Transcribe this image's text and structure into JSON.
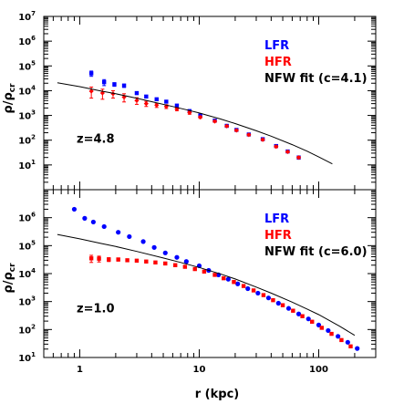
{
  "figure": {
    "xlabel": "r (kpc)",
    "ylabel": "ρ/ρ_cr"
  },
  "chart_data": [
    {
      "type": "scatter",
      "panel": "top",
      "annotation": "z=4.8",
      "xscale": "log",
      "yscale": "log",
      "xlim": [
        0.5,
        300
      ],
      "ylim": [
        1,
        10000000.0
      ],
      "xticks": [
        1,
        10,
        100
      ],
      "xtick_labels": [
        "1",
        "10",
        "100"
      ],
      "yticks": [
        10.0,
        100.0,
        1000.0,
        10000.0,
        100000.0,
        1000000.0,
        10000000.0
      ],
      "ytick_labels": [
        {
          "base": "10",
          "exp": "1"
        },
        {
          "base": "10",
          "exp": "2"
        },
        {
          "base": "10",
          "exp": "3"
        },
        {
          "base": "10",
          "exp": "4"
        },
        {
          "base": "10",
          "exp": "5"
        },
        {
          "base": "10",
          "exp": "6"
        },
        {
          "base": "10",
          "exp": "7"
        }
      ],
      "legend": {
        "position": "top-right",
        "entries": [
          {
            "label": "LFR",
            "color": "#0000ff"
          },
          {
            "label": "HFR",
            "color": "#ff0000"
          },
          {
            "label": "NFW fit (c=4.1)",
            "color": "#000000"
          }
        ]
      },
      "series": [
        {
          "name": "LFR",
          "color": "#0000ff",
          "marker": "square",
          "x": [
            1.25,
            1.6,
            1.95,
            2.35,
            3.0,
            3.6,
            4.4,
            5.3,
            6.5,
            8.3,
            10.2,
            13.5,
            17.0,
            20.5,
            26.0,
            34.0,
            44.0,
            55.0,
            68.0
          ],
          "y": [
            50000,
            22000,
            18000,
            16000,
            8000,
            5800,
            4500,
            3600,
            2500,
            1500,
            1000,
            620,
            380,
            260,
            170,
            110,
            58,
            35,
            20
          ],
          "err_low": [
            12000,
            6000,
            3000,
            2500,
            1000,
            600,
            400,
            300,
            200,
            150,
            100,
            60,
            30,
            20,
            15,
            10,
            6,
            4,
            3
          ],
          "err_high": [
            12000,
            6000,
            3000,
            2500,
            1000,
            600,
            400,
            300,
            200,
            150,
            100,
            60,
            30,
            20,
            15,
            10,
            6,
            4,
            3
          ]
        },
        {
          "name": "HFR",
          "color": "#ff0000",
          "marker": "diamond",
          "x": [
            1.25,
            1.55,
            1.9,
            2.35,
            3.0,
            3.6,
            4.4,
            5.3,
            6.5,
            8.3,
            10.2,
            13.5,
            17.0,
            20.5,
            26.0,
            34.0,
            44.0,
            55.0,
            68.0
          ],
          "y": [
            9500,
            8000,
            7500,
            5500,
            4000,
            3000,
            2600,
            2300,
            1800,
            1300,
            850,
            580,
            370,
            250,
            165,
            105,
            55,
            34,
            20
          ],
          "err_low": [
            4500,
            3500,
            2500,
            2000,
            1200,
            700,
            500,
            400,
            250,
            180,
            90,
            50,
            30,
            20,
            14,
            8,
            5,
            3,
            2
          ],
          "err_high": [
            4500,
            3500,
            2500,
            2000,
            1200,
            700,
            500,
            400,
            250,
            180,
            90,
            50,
            30,
            20,
            14,
            8,
            5,
            3,
            2
          ]
        },
        {
          "name": "NFW fit (c=4.1)",
          "color": "#000000",
          "type": "line",
          "x": [
            0.65,
            1,
            1.5,
            2,
            3,
            4,
            6,
            8,
            10,
            15,
            20,
            30,
            40,
            60,
            80,
            100,
            130
          ],
          "y": [
            21000,
            14500,
            9800,
            7500,
            4900,
            3600,
            2300,
            1650,
            1250,
            720,
            470,
            240,
            145,
            66,
            36,
            21,
            11
          ]
        }
      ]
    },
    {
      "type": "scatter",
      "panel": "bottom",
      "annotation": "z=1.0",
      "xscale": "log",
      "yscale": "log",
      "xlim": [
        0.5,
        300
      ],
      "ylim": [
        10.0,
        10000000.0
      ],
      "xticks": [
        1,
        10,
        100
      ],
      "xtick_labels": [
        "1",
        "10",
        "100"
      ],
      "yticks": [
        10.0,
        100.0,
        1000.0,
        10000.0,
        100000.0,
        1000000.0
      ],
      "ytick_labels": [
        {
          "base": "10",
          "exp": "1"
        },
        {
          "base": "10",
          "exp": "2"
        },
        {
          "base": "10",
          "exp": "3"
        },
        {
          "base": "10",
          "exp": "4"
        },
        {
          "base": "10",
          "exp": "5"
        },
        {
          "base": "10",
          "exp": "6"
        }
      ],
      "legend": {
        "position": "top-right",
        "entries": [
          {
            "label": "LFR",
            "color": "#0000ff"
          },
          {
            "label": "HFR",
            "color": "#ff0000"
          },
          {
            "label": "NFW fit (c=6.0)",
            "color": "#000000"
          }
        ]
      },
      "series": [
        {
          "name": "LFR",
          "color": "#0000ff",
          "marker": "circle",
          "x": [
            0.9,
            1.1,
            1.3,
            1.6,
            2.1,
            2.6,
            3.4,
            4.2,
            5.2,
            6.5,
            7.8,
            10.0,
            12.0,
            14.5,
            17.5,
            21.0,
            25.5,
            31.0,
            38.0,
            46.0,
            56.0,
            68.0,
            82.0,
            100.0,
            120.0,
            145.0,
            175.0,
            210.0
          ],
          "y": [
            2000000,
            950000,
            700000,
            480000,
            300000,
            210000,
            140000,
            86000,
            55000,
            38000,
            27000,
            19000,
            13000,
            9000,
            6300,
            4300,
            2900,
            2000,
            1350,
            870,
            570,
            360,
            240,
            145,
            92,
            57,
            35,
            21
          ]
        },
        {
          "name": "HFR",
          "color": "#ff0000",
          "marker": "square",
          "x": [
            1.25,
            1.45,
            1.75,
            2.1,
            2.5,
            3.0,
            3.6,
            4.3,
            5.2,
            6.3,
            7.6,
            9.2,
            11.0,
            13.5,
            16.0,
            19.5,
            23.5,
            28.5,
            34.5,
            41.5,
            50.0,
            61.0,
            73.0,
            88.0,
            106.0,
            128.0,
            155.0,
            185.0
          ],
          "y": [
            35000,
            34000,
            32000,
            32000,
            30000,
            29000,
            27000,
            25000,
            23000,
            20000,
            17500,
            14500,
            11800,
            9000,
            6800,
            5000,
            3600,
            2500,
            1700,
            1120,
            740,
            470,
            300,
            190,
            115,
            70,
            42,
            25
          ],
          "err_low": [
            10000,
            8000,
            5000,
            4000,
            3000,
            2500,
            2000,
            1500,
            1200,
            1000,
            800,
            600,
            500,
            400,
            300,
            200,
            150,
            100,
            80,
            60,
            40,
            30,
            20,
            12,
            8,
            5,
            3,
            2
          ],
          "err_high": [
            10000,
            8000,
            5000,
            4000,
            3000,
            2500,
            2000,
            1500,
            1200,
            1000,
            800,
            600,
            500,
            400,
            300,
            200,
            150,
            100,
            80,
            60,
            40,
            30,
            20,
            12,
            8,
            5,
            3,
            2
          ]
        },
        {
          "name": "NFW fit (c=6.0)",
          "color": "#000000",
          "type": "line",
          "x": [
            0.65,
            1,
            1.5,
            2,
            3,
            5,
            7,
            10,
            15,
            20,
            30,
            40,
            60,
            80,
            100,
            150,
            200
          ],
          "y": [
            250000,
            175000,
            120000,
            93000,
            62000,
            36000,
            25000,
            16500,
            9800,
            6400,
            3300,
            2000,
            950,
            540,
            340,
            130,
            62
          ]
        }
      ]
    }
  ]
}
